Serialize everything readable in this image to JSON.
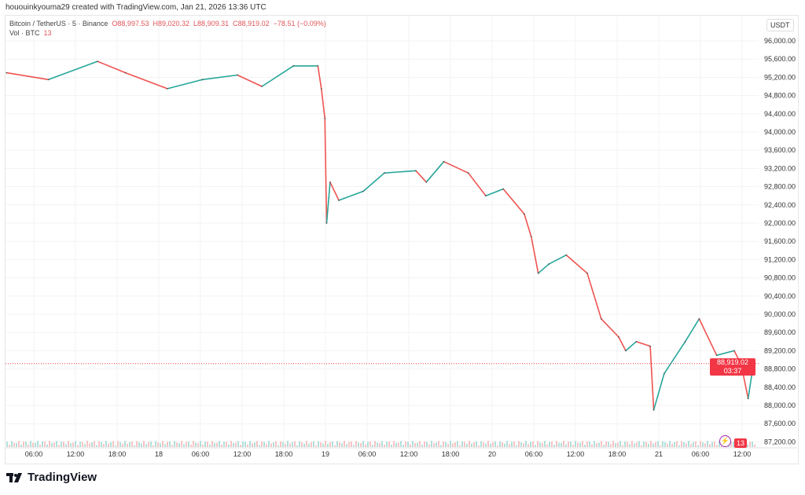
{
  "credit": "hououinkyouma29 created with TradingView.com, Jan 21, 2026 13:36 UTC",
  "legend": {
    "symbol": "Bitcoin / TetherUS · 5 · Binance",
    "open": "O88,997.53",
    "high": "H89,020.32",
    "low": "L88,909.31",
    "close": "C88,919.02",
    "change": "−78.51 (−0.09%)",
    "vol_label": "Vol · BTC",
    "vol_value": "13"
  },
  "currency_button": "USDT",
  "price_tag": {
    "price": "88,919.02",
    "countdown": "03:37"
  },
  "vol_tag": "13",
  "logo": "TradingView",
  "colors": {
    "up": "#26a69a",
    "down": "#ef5350",
    "last_price": "#f23645"
  },
  "chart_data": {
    "type": "line",
    "title": "",
    "ylim": [
      87200,
      96000
    ],
    "grid": true,
    "y_ticks": [
      "96,000.00",
      "95,600.00",
      "95,200.00",
      "94,800.00",
      "94,400.00",
      "94,000.00",
      "93,600.00",
      "93,200.00",
      "92,800.00",
      "92,400.00",
      "92,000.00",
      "91,600.00",
      "91,200.00",
      "90,800.00",
      "90,400.00",
      "90,000.00",
      "89,600.00",
      "89,200.00",
      "88,800.00",
      "88,400.00",
      "88,000.00",
      "87,600.00",
      "87,200.00"
    ],
    "x_ticks": [
      "06:00",
      "12:00",
      "18:00",
      "18",
      "06:00",
      "12:00",
      "18:00",
      "19",
      "06:00",
      "12:00",
      "18:00",
      "20",
      "06:00",
      "12:00",
      "18:00",
      "21",
      "06:00",
      "12:00"
    ],
    "last_price": 88919.02,
    "series": [
      {
        "values": [
          [
            "01-17 02:00",
            95300
          ],
          [
            "01-17 08:00",
            95150
          ],
          [
            "01-17 15:00",
            95550
          ],
          [
            "01-17 19:00",
            95300
          ],
          [
            "01-18 01:00",
            94950
          ],
          [
            "01-18 06:00",
            95150
          ],
          [
            "01-18 11:00",
            95250
          ],
          [
            "01-18 14:30",
            95000
          ],
          [
            "01-18 19:00",
            95450
          ],
          [
            "01-18 22:30",
            95450
          ],
          [
            "01-18 23:00",
            94950
          ],
          [
            "01-18 23:30",
            94300
          ],
          [
            "01-18 23:45",
            92000
          ],
          [
            "01-19 00:15",
            92900
          ],
          [
            "01-19 01:30",
            92500
          ],
          [
            "01-19 05:00",
            92700
          ],
          [
            "01-19 08:00",
            93100
          ],
          [
            "01-19 12:30",
            93150
          ],
          [
            "01-19 14:00",
            92900
          ],
          [
            "01-19 16:30",
            93350
          ],
          [
            "01-19 20:00",
            93100
          ],
          [
            "01-19 22:30",
            92600
          ],
          [
            "01-20 01:00",
            92750
          ],
          [
            "01-20 04:00",
            92200
          ],
          [
            "01-20 05:00",
            91700
          ],
          [
            "01-20 06:00",
            90900
          ],
          [
            "01-20 07:30",
            91100
          ],
          [
            "01-20 10:00",
            91300
          ],
          [
            "01-20 13:00",
            90900
          ],
          [
            "01-20 15:00",
            89900
          ],
          [
            "01-20 17:30",
            89500
          ],
          [
            "01-20 18:30",
            89200
          ],
          [
            "01-20 20:00",
            89400
          ],
          [
            "01-20 22:00",
            89300
          ],
          [
            "01-20 22:30",
            87900
          ],
          [
            "01-21 00:00",
            88700
          ],
          [
            "01-21 03:00",
            89400
          ],
          [
            "01-21 05:00",
            89900
          ],
          [
            "01-21 07:30",
            89100
          ],
          [
            "01-21 10:00",
            89200
          ],
          [
            "01-21 11:00",
            88900
          ],
          [
            "01-21 12:00",
            88150
          ],
          [
            "01-21 12:45",
            88919
          ]
        ]
      }
    ]
  }
}
